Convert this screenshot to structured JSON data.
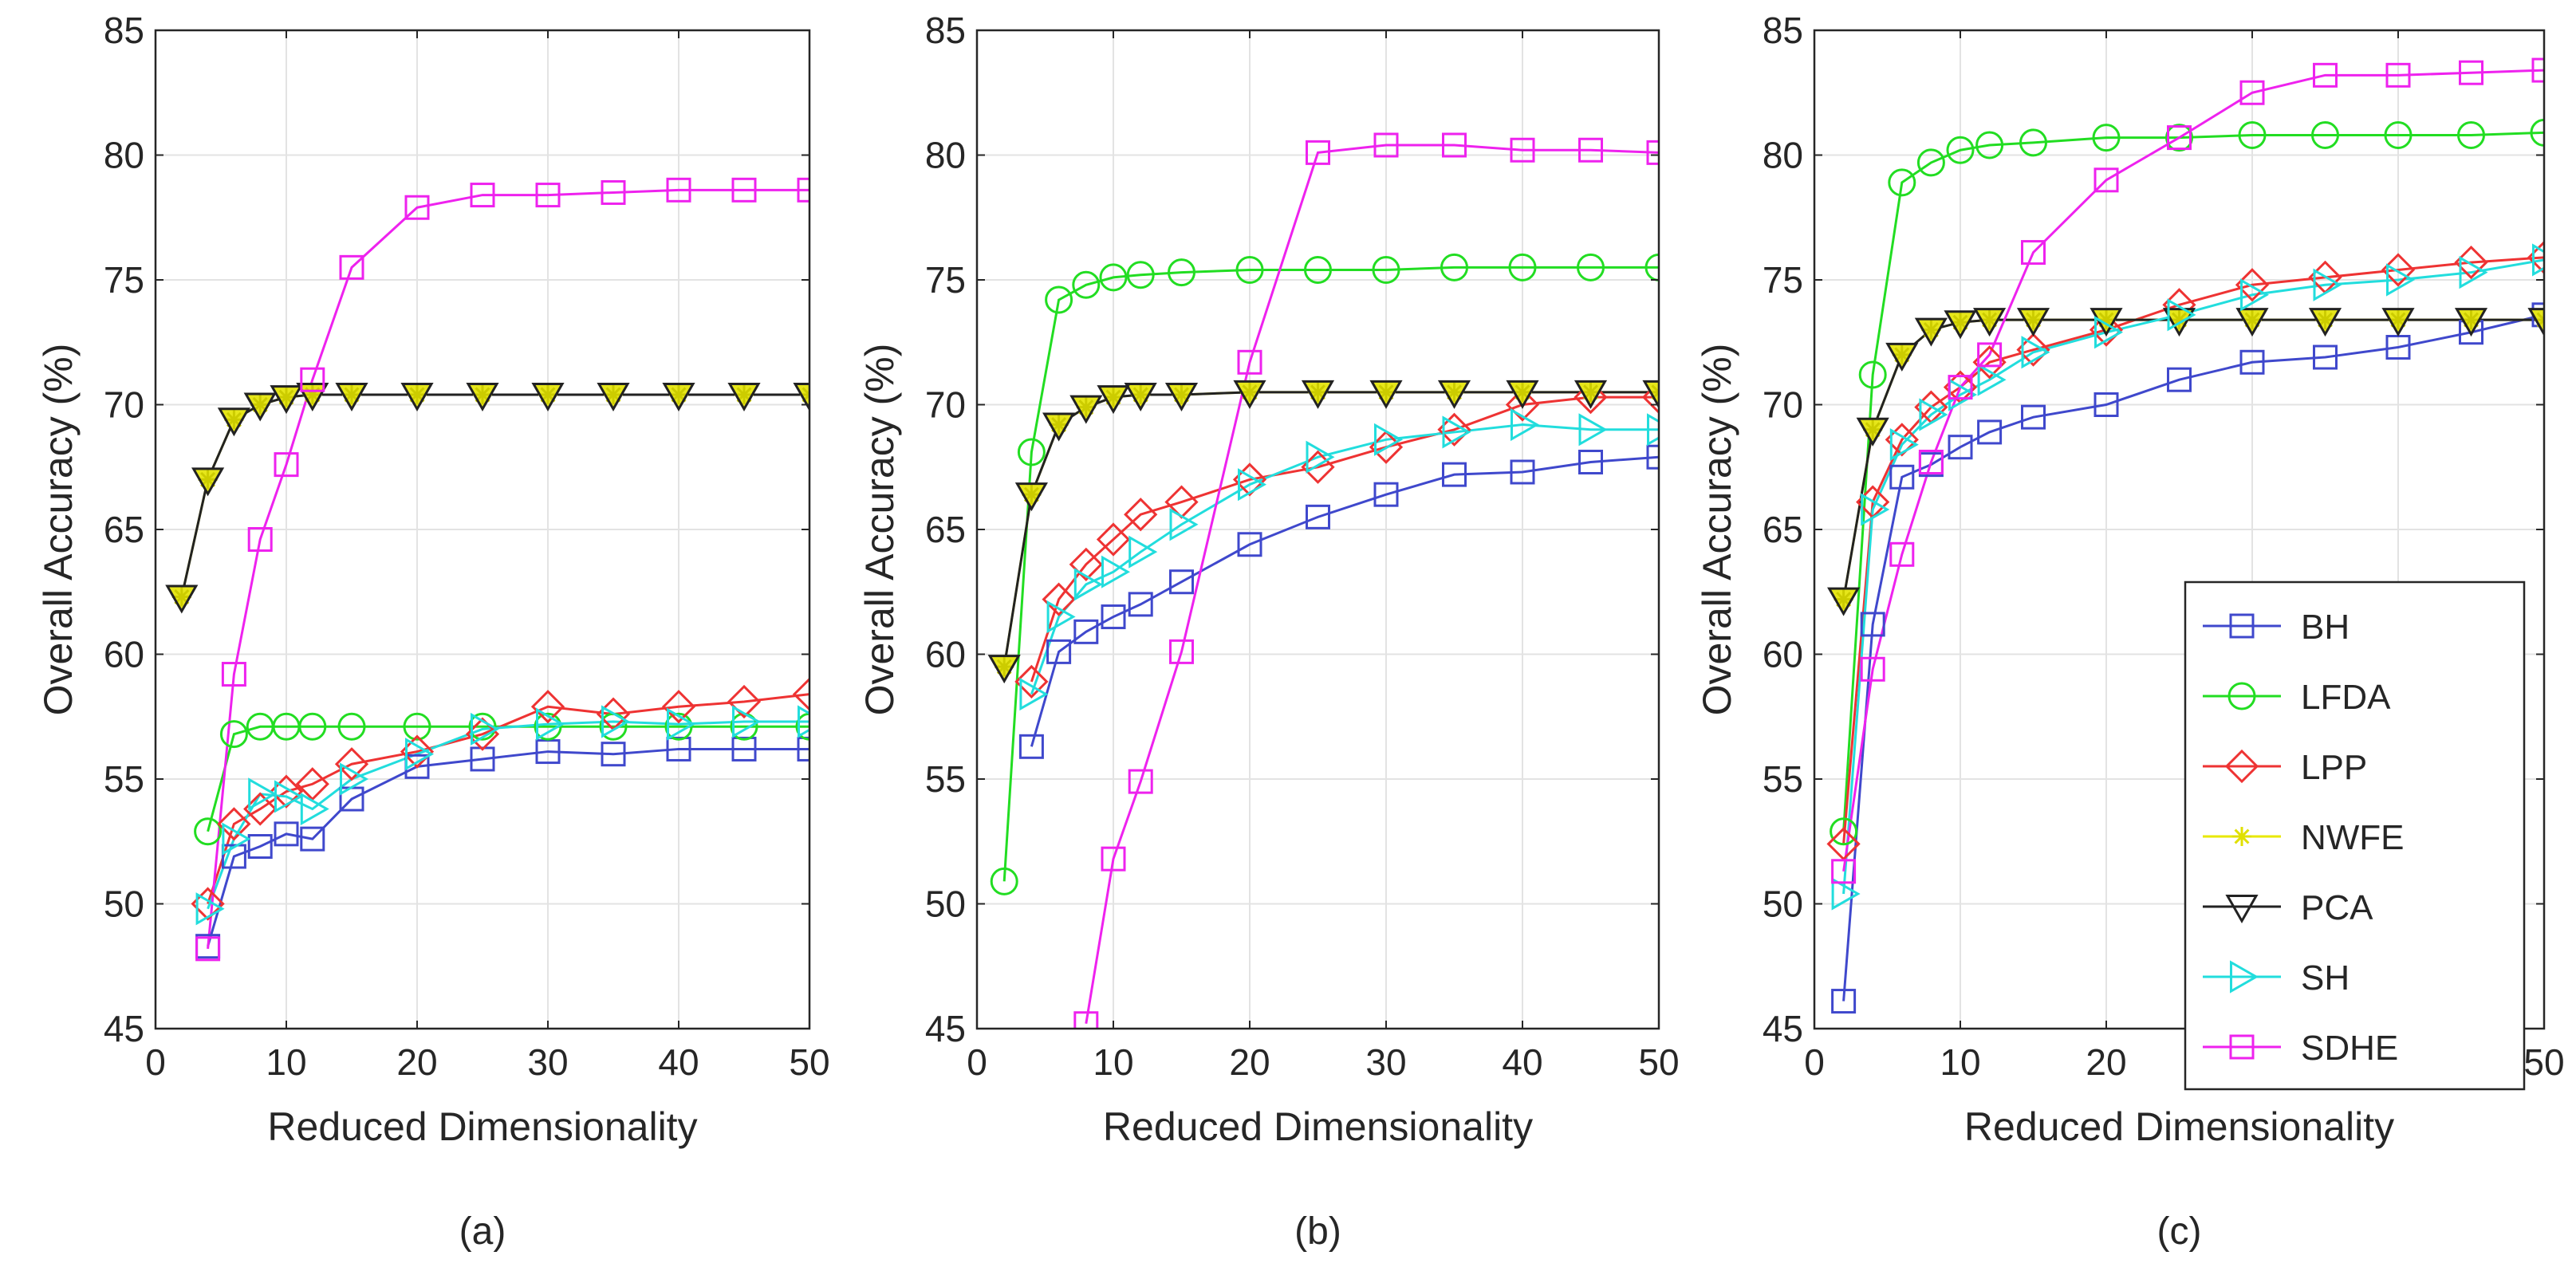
{
  "chart_data": [
    {
      "type": "line",
      "caption": "(a)",
      "xlabel": "Reduced Dimensionality",
      "ylabel": "Overall Accuracy (%)",
      "xlim": [
        0,
        50
      ],
      "ylim": [
        45,
        85
      ],
      "xticks": [
        0,
        10,
        20,
        30,
        40,
        50
      ],
      "yticks": [
        45,
        50,
        55,
        60,
        65,
        70,
        75,
        80,
        85
      ],
      "grid": true,
      "x": [
        2,
        4,
        6,
        8,
        10,
        12,
        15,
        20,
        25,
        30,
        35,
        40,
        45,
        50
      ],
      "series": [
        {
          "name": "BH",
          "values": [
            null,
            48.3,
            51.9,
            52.3,
            52.8,
            52.6,
            54.2,
            55.5,
            55.8,
            56.1,
            56.0,
            56.2,
            56.2,
            56.2
          ]
        },
        {
          "name": "LFDA",
          "values": [
            null,
            52.9,
            56.8,
            57.1,
            57.1,
            57.1,
            57.1,
            57.1,
            57.1,
            57.1,
            57.1,
            57.1,
            57.1,
            57.1
          ]
        },
        {
          "name": "LPP",
          "values": [
            null,
            50.0,
            53.2,
            53.8,
            54.5,
            54.8,
            55.6,
            56.1,
            56.8,
            57.9,
            57.6,
            57.9,
            58.1,
            58.4
          ]
        },
        {
          "name": "NWFE",
          "values": [
            62.3,
            67.0,
            69.4,
            70.0,
            70.3,
            70.4,
            70.4,
            70.4,
            70.4,
            70.4,
            70.4,
            70.4,
            70.4,
            70.4
          ]
        },
        {
          "name": "PCA",
          "values": [
            62.3,
            67.0,
            69.4,
            70.0,
            70.3,
            70.4,
            70.4,
            70.4,
            70.4,
            70.4,
            70.4,
            70.4,
            70.4,
            70.4
          ]
        },
        {
          "name": "SH",
          "values": [
            null,
            49.8,
            52.6,
            54.4,
            54.3,
            53.8,
            55.0,
            56.0,
            57.0,
            57.2,
            57.3,
            57.2,
            57.3,
            57.3
          ]
        },
        {
          "name": "SDHE",
          "values": [
            null,
            48.2,
            59.2,
            64.6,
            67.6,
            71.0,
            75.5,
            77.9,
            78.4,
            78.4,
            78.5,
            78.6,
            78.6,
            78.6
          ]
        }
      ]
    },
    {
      "type": "line",
      "caption": "(b)",
      "xlabel": "Reduced Dimensionality",
      "ylabel": "Overall Accuracy (%)",
      "xlim": [
        0,
        50
      ],
      "ylim": [
        45,
        85
      ],
      "xticks": [
        0,
        10,
        20,
        30,
        40,
        50
      ],
      "yticks": [
        45,
        50,
        55,
        60,
        65,
        70,
        75,
        80,
        85
      ],
      "grid": true,
      "x": [
        2,
        4,
        6,
        8,
        10,
        12,
        15,
        20,
        25,
        30,
        35,
        40,
        45,
        50
      ],
      "series": [
        {
          "name": "BH",
          "values": [
            null,
            56.3,
            60.1,
            60.9,
            61.5,
            62.0,
            62.9,
            64.4,
            65.5,
            66.4,
            67.2,
            67.3,
            67.7,
            67.9
          ]
        },
        {
          "name": "LFDA",
          "values": [
            50.9,
            68.1,
            74.2,
            74.8,
            75.1,
            75.2,
            75.3,
            75.4,
            75.4,
            75.4,
            75.5,
            75.5,
            75.5,
            75.5
          ]
        },
        {
          "name": "LPP",
          "values": [
            null,
            58.9,
            62.2,
            63.6,
            64.6,
            65.6,
            66.1,
            67.0,
            67.5,
            68.3,
            69.0,
            70.0,
            70.3,
            70.3
          ]
        },
        {
          "name": "NWFE",
          "values": [
            59.5,
            66.4,
            69.2,
            69.9,
            70.3,
            70.4,
            70.4,
            70.5,
            70.5,
            70.5,
            70.5,
            70.5,
            70.5,
            70.5
          ]
        },
        {
          "name": "PCA",
          "values": [
            59.5,
            66.4,
            69.2,
            69.9,
            70.3,
            70.4,
            70.4,
            70.5,
            70.5,
            70.5,
            70.5,
            70.5,
            70.5,
            70.5
          ]
        },
        {
          "name": "SH",
          "values": [
            null,
            58.4,
            61.5,
            62.8,
            63.3,
            64.1,
            65.2,
            66.8,
            67.9,
            68.6,
            68.9,
            69.2,
            69.0,
            69.0
          ]
        },
        {
          "name": "SDHE",
          "values": [
            null,
            null,
            null,
            45.2,
            51.8,
            54.9,
            60.1,
            71.7,
            80.1,
            80.4,
            80.4,
            80.2,
            80.2,
            80.1
          ]
        }
      ]
    },
    {
      "type": "line",
      "caption": "(c)",
      "xlabel": "Reduced Dimensionality",
      "ylabel": "Overall Accuracy (%)",
      "xlim": [
        0,
        50
      ],
      "ylim": [
        45,
        85
      ],
      "xticks": [
        0,
        10,
        20,
        30,
        40,
        50
      ],
      "yticks": [
        45,
        50,
        55,
        60,
        65,
        70,
        75,
        80,
        85
      ],
      "grid": true,
      "legend_position": "bottom-right",
      "x": [
        2,
        4,
        6,
        8,
        10,
        12,
        15,
        20,
        25,
        30,
        35,
        40,
        45,
        50
      ],
      "series": [
        {
          "name": "BH",
          "values": [
            46.1,
            61.2,
            67.1,
            67.6,
            68.3,
            68.9,
            69.5,
            70.0,
            71.0,
            71.7,
            71.9,
            72.3,
            72.9,
            73.6
          ]
        },
        {
          "name": "LFDA",
          "values": [
            52.9,
            71.2,
            78.9,
            79.7,
            80.2,
            80.4,
            80.5,
            80.7,
            80.7,
            80.8,
            80.8,
            80.8,
            80.8,
            80.9
          ]
        },
        {
          "name": "LPP",
          "values": [
            52.4,
            66.1,
            68.6,
            69.9,
            70.7,
            71.7,
            72.2,
            73.0,
            74.0,
            74.8,
            75.1,
            75.4,
            75.7,
            75.9
          ]
        },
        {
          "name": "NWFE",
          "values": [
            62.2,
            69.0,
            72.0,
            73.0,
            73.3,
            73.4,
            73.4,
            73.4,
            73.4,
            73.4,
            73.4,
            73.4,
            73.4,
            73.4
          ]
        },
        {
          "name": "PCA",
          "values": [
            62.2,
            69.0,
            72.0,
            73.0,
            73.3,
            73.4,
            73.4,
            73.4,
            73.4,
            73.4,
            73.4,
            73.4,
            73.4,
            73.4
          ]
        },
        {
          "name": "SH",
          "values": [
            50.4,
            65.8,
            68.4,
            69.6,
            70.4,
            71.0,
            72.1,
            72.9,
            73.6,
            74.4,
            74.8,
            75.0,
            75.3,
            75.8
          ]
        },
        {
          "name": "SDHE",
          "values": [
            51.3,
            59.4,
            64.0,
            67.7,
            70.7,
            72.0,
            76.1,
            79.0,
            80.7,
            82.5,
            83.2,
            83.2,
            83.3,
            83.4
          ]
        }
      ]
    }
  ],
  "series_style": {
    "BH": {
      "color": "#3f48cc",
      "marker": "square"
    },
    "LFDA": {
      "color": "#22dd22",
      "marker": "circle"
    },
    "LPP": {
      "color": "#ee3333",
      "marker": "diamond"
    },
    "NWFE": {
      "color": "#e8e800",
      "marker": "star"
    },
    "PCA": {
      "color": "#222222",
      "marker": "triangle-down"
    },
    "SH": {
      "color": "#22dddd",
      "marker": "triangle-right"
    },
    "SDHE": {
      "color": "#ee22ee",
      "marker": "square"
    }
  }
}
